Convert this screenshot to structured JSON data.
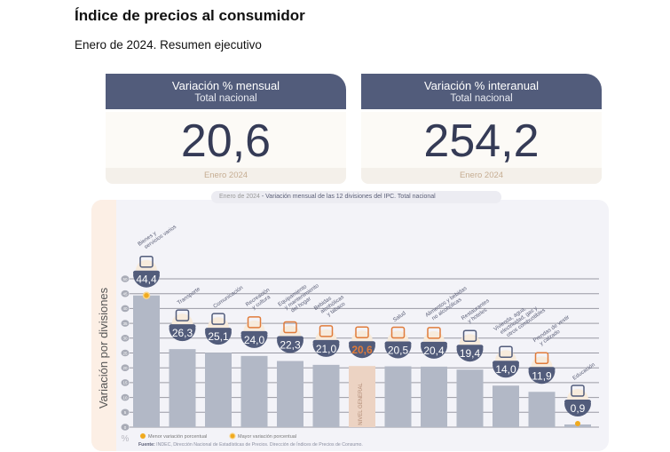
{
  "header": {
    "title": "Índice de precios al consumidor",
    "subtitle": "Enero de 2024. Resumen ejecutivo"
  },
  "cards": [
    {
      "title": "Variación % mensual",
      "subtitle": "Total nacional",
      "value": "20,6",
      "period": "Enero 2024"
    },
    {
      "title": "Variación % interanual",
      "subtitle": "Total nacional",
      "value": "254,2",
      "period": "Enero 2024"
    }
  ],
  "caption": {
    "period": "Enero de 2024",
    "text": " - Variación mensual de las 12 divisiones del IPC. Total nacional"
  },
  "colors": {
    "card_header": "#525c7b",
    "bar": "#b2b8c6",
    "bar_general": "#ecd3c3",
    "badge": "#525c7b",
    "highlight": "#e07b3a",
    "dot": "#f0aa1e"
  },
  "chart_data": {
    "type": "bar",
    "title": "Enero de 2024 - Variación mensual de las 12 divisiones del IPC. Total nacional",
    "ylabel": "Variación por divisiones",
    "yunit": "%",
    "ylim": [
      0,
      50
    ],
    "yticks": [
      "0",
      "5",
      "10",
      "15",
      "20",
      "25",
      "30",
      "35",
      "40",
      "45",
      "50"
    ],
    "grid": true,
    "categories": [
      [
        "Bienes y",
        "servicios varios"
      ],
      [
        "Transporte"
      ],
      [
        "Comunicación"
      ],
      [
        "Recreación",
        "y cultura"
      ],
      [
        "Equipamiento",
        "y mantenimiento",
        "del hogar"
      ],
      [
        "Bebidas",
        "alcohólicas",
        "y tabaco"
      ],
      [
        "NIVEL",
        "GENERAL"
      ],
      [
        "Salud"
      ],
      [
        "Alimentos y bebidas",
        "no alcohólicas"
      ],
      [
        "Restaurantes",
        "y hoteles"
      ],
      [
        "Vivienda, agua,",
        "electricidad, gas y",
        "otros combustibles"
      ],
      [
        "Prendas de vestir",
        "y calzado"
      ],
      [
        "Educación"
      ]
    ],
    "values": [
      44.4,
      26.3,
      25.1,
      24.0,
      22.3,
      21.0,
      20.6,
      20.5,
      20.4,
      19.4,
      14.0,
      11.9,
      0.9
    ],
    "labels": [
      "44,4",
      "26,3",
      "25,1",
      "24,0",
      "22,3",
      "21,0",
      "20,6",
      "20,5",
      "20,4",
      "19,4",
      "14,0",
      "11,9",
      "0,9"
    ],
    "general_index": 6,
    "max_index": 0,
    "min_index": 12,
    "legend": {
      "min": "Menor variación porcentual",
      "max": "Mayor variación porcentual"
    },
    "source_label": "Fuente:",
    "source": " INDEC, Dirección Nacional de Estadísticas de Precios. Dirección de Índices de Precios de Consumo."
  }
}
